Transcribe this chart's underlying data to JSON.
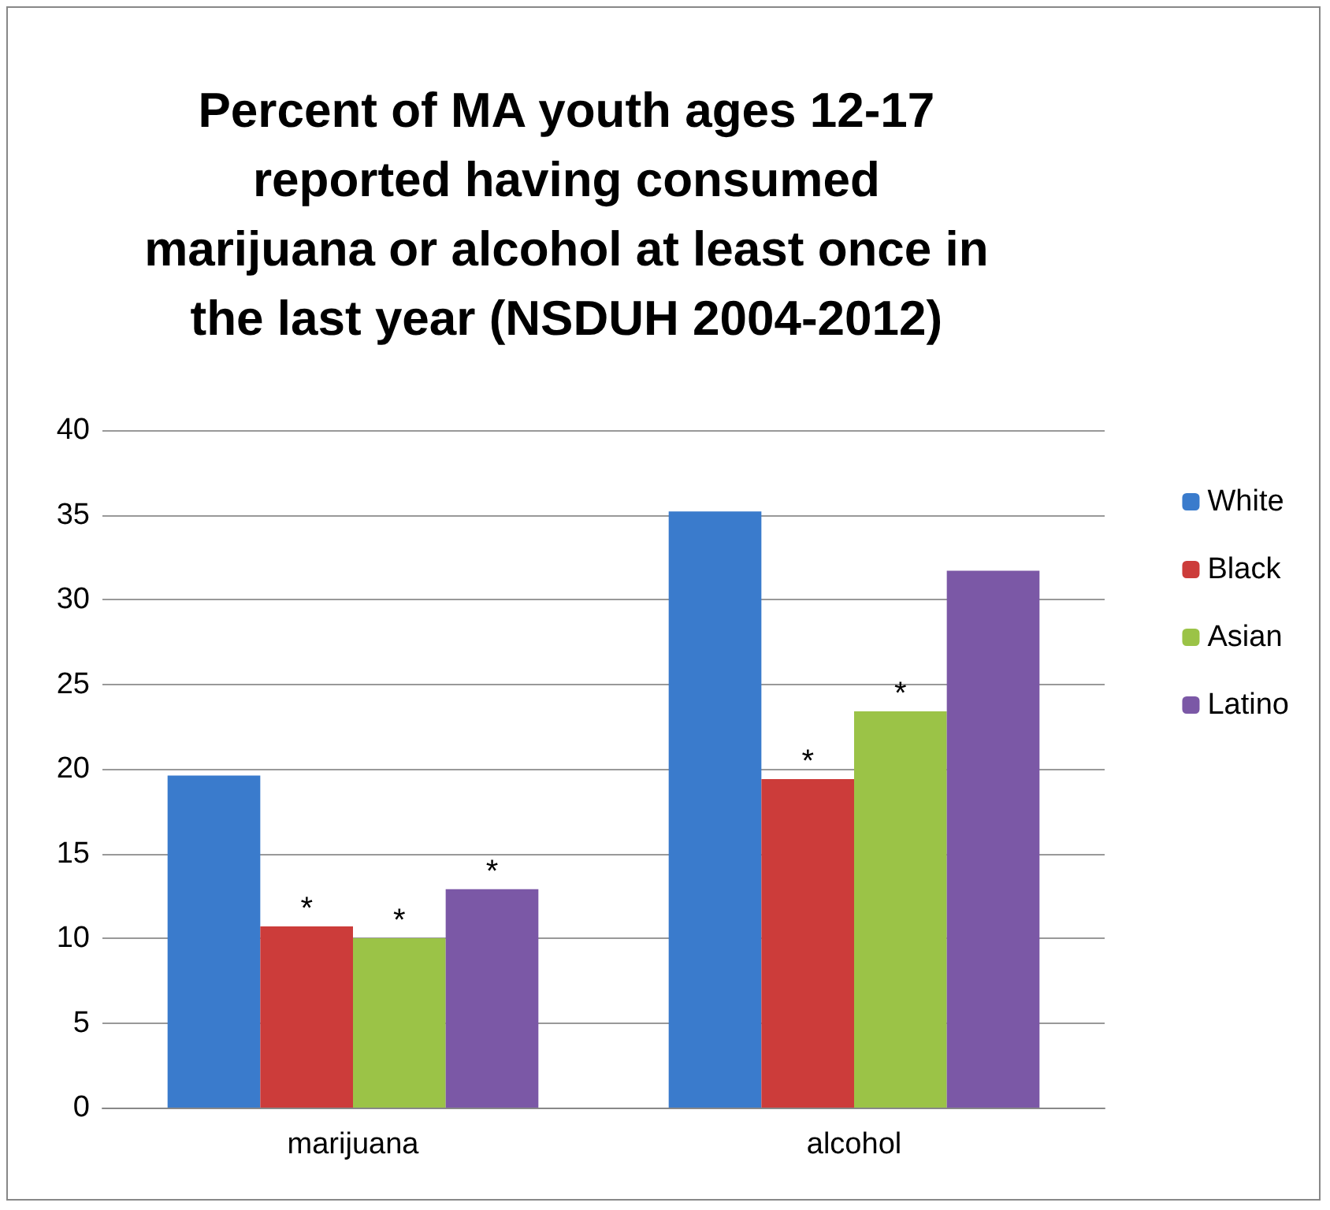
{
  "chart_data": {
    "type": "bar",
    "title": "Percent of MA youth ages 12-17\nreported having consumed\nmarijuana or alcohol at least once in\nthe last year (NSDUH 2004-2012)",
    "categories": [
      "marijuana",
      "alcohol"
    ],
    "series": [
      {
        "name": "White",
        "color": "#3a7bcc",
        "values": [
          19.6,
          35.2
        ]
      },
      {
        "name": "Black",
        "color": "#cc3c3a",
        "values": [
          10.7,
          19.4
        ],
        "value_labels": [
          "*",
          "*"
        ]
      },
      {
        "name": "Asian",
        "color": "#9bc347",
        "values": [
          10.0,
          23.4
        ],
        "value_labels": [
          "*",
          "*"
        ]
      },
      {
        "name": "Latino",
        "color": "#7b58a6",
        "values": [
          12.9,
          31.7
        ],
        "value_labels": [
          "*",
          null
        ]
      }
    ],
    "ylim": [
      0,
      40
    ],
    "yticks": [
      0,
      5,
      10,
      15,
      20,
      25,
      30,
      35,
      40
    ],
    "grid": "y",
    "legend": "right"
  }
}
